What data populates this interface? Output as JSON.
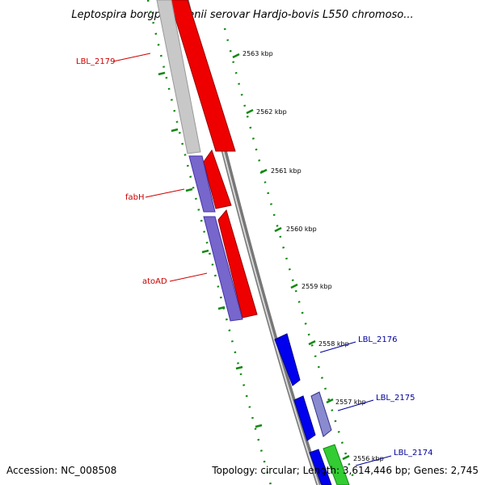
{
  "title": "Leptospira borgpetersenii serovar Hardjo-bovis L550 chromoso...",
  "footer": {
    "accession": "Accession: NC_008508",
    "stats": "Topology: circular; Length: 3,614,446 bp; Genes: 2,745"
  },
  "colors": {
    "forward_gene": "#ff0000",
    "reverse_gene_purple": "#7766cc",
    "reverse_gene_blue": "#0000ee",
    "gray_gene": "#c8c8c8",
    "green_gene": "#33cc33",
    "backbone": "#888888",
    "tick": "#118811",
    "label_red": "#cc0000",
    "label_blue": "#000099"
  },
  "kbp_labels": [
    "2563 kbp",
    "2562 kbp",
    "2561 kbp",
    "2560 kbp",
    "2559 kbp",
    "2558 kbp",
    "2557 kbp",
    "2556 kbp"
  ],
  "gene_labels": [
    "LBL_2179",
    "fabH",
    "atoAD",
    "LBL_2176",
    "LBL_2175",
    "LBL_2174"
  ]
}
